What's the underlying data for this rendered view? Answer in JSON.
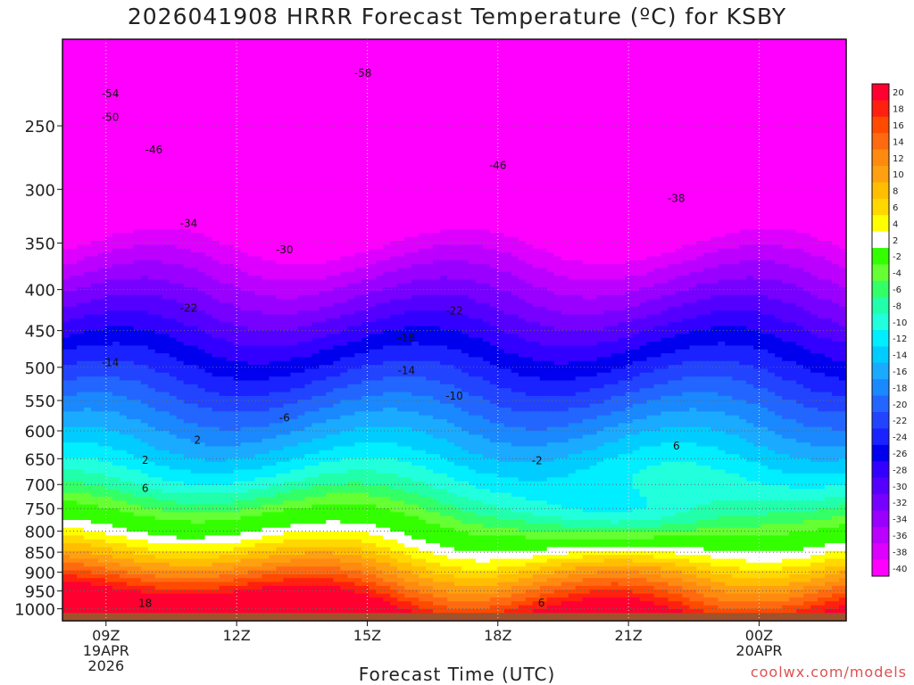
{
  "title": "2026041908 HRRR Forecast Temperature (ºC) for KSBY",
  "credit": "coolwx.com/models",
  "chart_data": {
    "type": "heatmap",
    "title": "2026041908 HRRR Forecast Temperature (ºC) for KSBY",
    "xlabel": "Forecast Time (UTC)",
    "ylabel": "",
    "y_scale": "log (pressure, hPa, inverted)",
    "ylim": [
      1035,
      195
    ],
    "xlim": [
      8,
      26
    ],
    "x_ticks": [
      {
        "x": 9,
        "label": "09Z",
        "sub": "19APR",
        "sub2": "2026"
      },
      {
        "x": 12,
        "label": "12Z",
        "sub": "",
        "sub2": ""
      },
      {
        "x": 15,
        "label": "15Z",
        "sub": "",
        "sub2": ""
      },
      {
        "x": 18,
        "label": "18Z",
        "sub": "",
        "sub2": ""
      },
      {
        "x": 21,
        "label": "21Z",
        "sub": "",
        "sub2": ""
      },
      {
        "x": 24,
        "label": "00Z",
        "sub": "20APR",
        "sub2": ""
      }
    ],
    "y_ticks": [
      250,
      300,
      350,
      400,
      450,
      500,
      550,
      600,
      650,
      700,
      750,
      800,
      850,
      900,
      950,
      1000
    ],
    "grid": true,
    "colorbar": {
      "placement": "right",
      "levels": [
        20,
        18,
        16,
        14,
        12,
        10,
        8,
        6,
        4,
        2,
        -2,
        -4,
        -6,
        -8,
        -10,
        -12,
        -14,
        -16,
        -18,
        -20,
        -22,
        -24,
        -26,
        -28,
        -30,
        -32,
        -34,
        -36,
        -38,
        -40
      ],
      "colors": [
        "#ff0030",
        "#ff2010",
        "#ff4a00",
        "#ff6a10",
        "#ff8a10",
        "#ffa010",
        "#ffbe00",
        "#ffd800",
        "#ffff00",
        "#ffffff",
        "#33ff00",
        "#66ff33",
        "#33ff66",
        "#22ffaa",
        "#22ffdd",
        "#00eeff",
        "#00ccff",
        "#1aaaff",
        "#1a88ff",
        "#2266ff",
        "#2244ff",
        "#1a22ff",
        "#0000ee",
        "#3300ff",
        "#5500ff",
        "#7700ff",
        "#9900ff",
        "#bb00ff",
        "#dd00ff",
        "#ff00ff"
      ]
    },
    "isotherm_labels": [
      {
        "label": "-58",
        "x": 14.9,
        "p": 215
      },
      {
        "label": "-54",
        "x": 9.1,
        "p": 228
      },
      {
        "label": "-50",
        "x": 9.1,
        "p": 244
      },
      {
        "label": "-46",
        "x": 10.1,
        "p": 268
      },
      {
        "label": "-46",
        "x": 18.0,
        "p": 280
      },
      {
        "label": "-38",
        "x": 22.1,
        "p": 308
      },
      {
        "label": "-34",
        "x": 10.9,
        "p": 331
      },
      {
        "label": "-30",
        "x": 13.1,
        "p": 357
      },
      {
        "label": "-22",
        "x": 10.9,
        "p": 422
      },
      {
        "label": "-22",
        "x": 17.0,
        "p": 425
      },
      {
        "label": "-18",
        "x": 15.9,
        "p": 460
      },
      {
        "label": "-14",
        "x": 9.1,
        "p": 493
      },
      {
        "label": "-14",
        "x": 15.9,
        "p": 505
      },
      {
        "label": "-10",
        "x": 17.0,
        "p": 543
      },
      {
        "label": "-6",
        "x": 13.1,
        "p": 578
      },
      {
        "label": "6",
        "x": 22.1,
        "p": 627
      },
      {
        "label": "2",
        "x": 11.1,
        "p": 616
      },
      {
        "label": "-2",
        "x": 18.9,
        "p": 654
      },
      {
        "label": "2",
        "x": 9.9,
        "p": 653
      },
      {
        "label": "6",
        "x": 9.9,
        "p": 708
      },
      {
        "label": "6",
        "x": 19.0,
        "p": 983
      },
      {
        "label": "18",
        "x": 9.9,
        "p": 985
      }
    ]
  }
}
